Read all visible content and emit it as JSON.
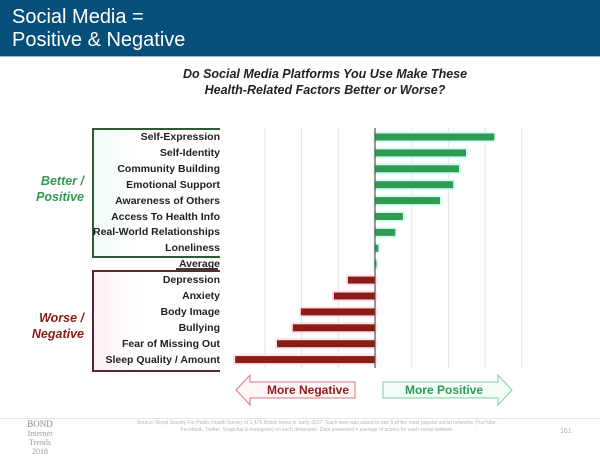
{
  "header": {
    "title_line1": "Social Media =",
    "title_line2": "Positive & Negative"
  },
  "question": {
    "line1": "Do Social Media Platforms You Use Make These",
    "line2": "Health-Related Factors Better or Worse?"
  },
  "groups": {
    "positive_label_line1": "Better /",
    "positive_label_line2": "Positive",
    "negative_label_line1": "Worse /",
    "negative_label_line2": "Negative"
  },
  "arrows": {
    "negative": "More Negative",
    "positive": "More Positive"
  },
  "colors": {
    "header_bg": "#054f7a",
    "positive_bar": "#2e9a52",
    "negative_bar": "#8b1d14",
    "positive_text": "#2e9a52",
    "negative_text": "#8b1d14"
  },
  "chart_data": {
    "type": "bar",
    "orientation": "horizontal",
    "title": "Do Social Media Platforms You Use Make These Health-Related Factors Better or Worse?",
    "xlabel": "",
    "ylabel": "",
    "xlim": [
      -4,
      4
    ],
    "grid": true,
    "tick_labels_shown": false,
    "categories": [
      "Self-Expression",
      "Self-Identity",
      "Community Building",
      "Emotional Support",
      "Awareness of Others",
      "Access To Health Info",
      "Real-World Relationships",
      "Loneliness",
      "Average",
      "Depression",
      "Anxiety",
      "Body Image",
      "Bullying",
      "Fear of Missing Out",
      "Sleep Quality / Amount"
    ],
    "values": [
      3.25,
      2.48,
      2.29,
      2.13,
      1.77,
      0.76,
      0.55,
      0.09,
      0.02,
      -0.74,
      -1.12,
      -2.02,
      -2.24,
      -2.67,
      -3.81
    ],
    "notes": "Values estimated relative to gridline spacing (1 unit per gridline); positive = better, negative = worse"
  },
  "footer": {
    "brand_line1": "BOND",
    "brand_line2": "Internet Trends",
    "brand_line3": "2018",
    "source": "Source: Royal Society For Public Health Survey of 1,479 British teens in 'early-2017'. Each teen was asked to rate 5 of the most popular social networks (YouTube, Facebook, Twitter, Snapchat & Instagram) on each dimension. Data presented = average of scores for each social network.",
    "page_number": "161"
  }
}
